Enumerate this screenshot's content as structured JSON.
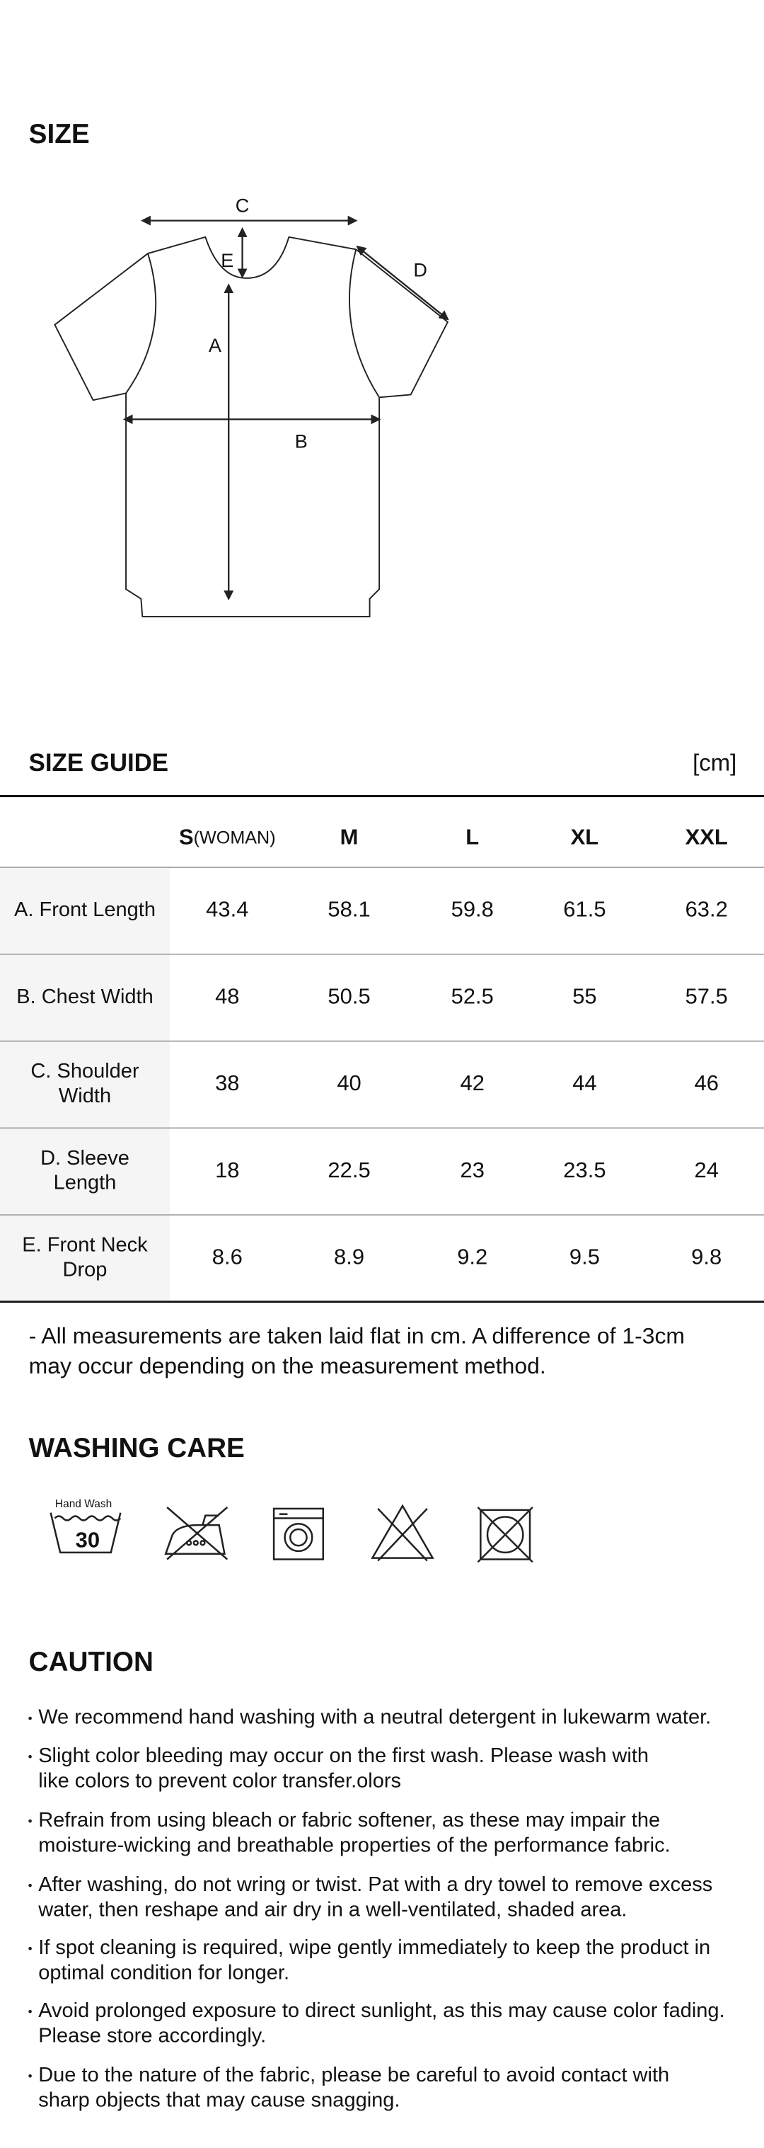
{
  "size": {
    "title": "SIZE",
    "labels": {
      "a": "A",
      "b": "B",
      "c": "C",
      "d": "D",
      "e": "E"
    }
  },
  "guide": {
    "title": "SIZE GUIDE",
    "unit": "[cm]",
    "columns": [
      [
        "S",
        "(WOMAN)"
      ],
      [
        "M"
      ],
      [
        "L"
      ],
      [
        "XL"
      ],
      [
        "XXL"
      ]
    ],
    "rows": [
      {
        "label": [
          "A. Front Length"
        ],
        "values": [
          "43.4",
          "58.1",
          "59.8",
          "61.5",
          "63.2"
        ]
      },
      {
        "label": [
          "B. Chest Width"
        ],
        "values": [
          "48",
          "50.5",
          "52.5",
          "55",
          "57.5"
        ]
      },
      {
        "label": [
          "C. Shoulder",
          "Width"
        ],
        "values": [
          "38",
          "40",
          "42",
          "44",
          "46"
        ]
      },
      {
        "label": [
          "D. Sleeve",
          "Length"
        ],
        "values": [
          "18",
          "22.5",
          "23",
          "23.5",
          "24"
        ]
      },
      {
        "label": [
          "E. Front Neck",
          "Drop"
        ],
        "values": [
          "8.6",
          "8.9",
          "9.2",
          "9.5",
          "9.8"
        ]
      }
    ],
    "note": [
      "- All measurements are taken laid flat in cm. A difference of 1-3cm",
      "may occur depending on the measurement method."
    ]
  },
  "washing": {
    "title": "WASHING CARE",
    "hand_wash": "Hand Wash",
    "temperature": "30"
  },
  "caution": {
    "title": "CAUTION",
    "items": [
      [
        "We recommend hand washing with a neutral detergent in lukewarm water."
      ],
      [
        "Slight color bleeding may occur on the first wash. Please wash with",
        "like colors to prevent color transfer.olors"
      ],
      [
        "Refrain from using bleach or fabric softener, as these may impair the",
        "moisture-wicking and breathable properties of the performance fabric."
      ],
      [
        "After washing, do not wring or twist. Pat with a dry towel to remove excess",
        "water, then reshape and air dry in a well-ventilated, shaded area."
      ],
      [
        "If spot cleaning is required, wipe gently immediately to keep the product in",
        "optimal condition for longer."
      ],
      [
        "Avoid prolonged exposure to direct sunlight, as this may cause color fading.",
        "Please store accordingly."
      ],
      [
        "Due to the nature of the fabric, please be careful to avoid contact with",
        "sharp objects that may cause snagging."
      ]
    ]
  }
}
